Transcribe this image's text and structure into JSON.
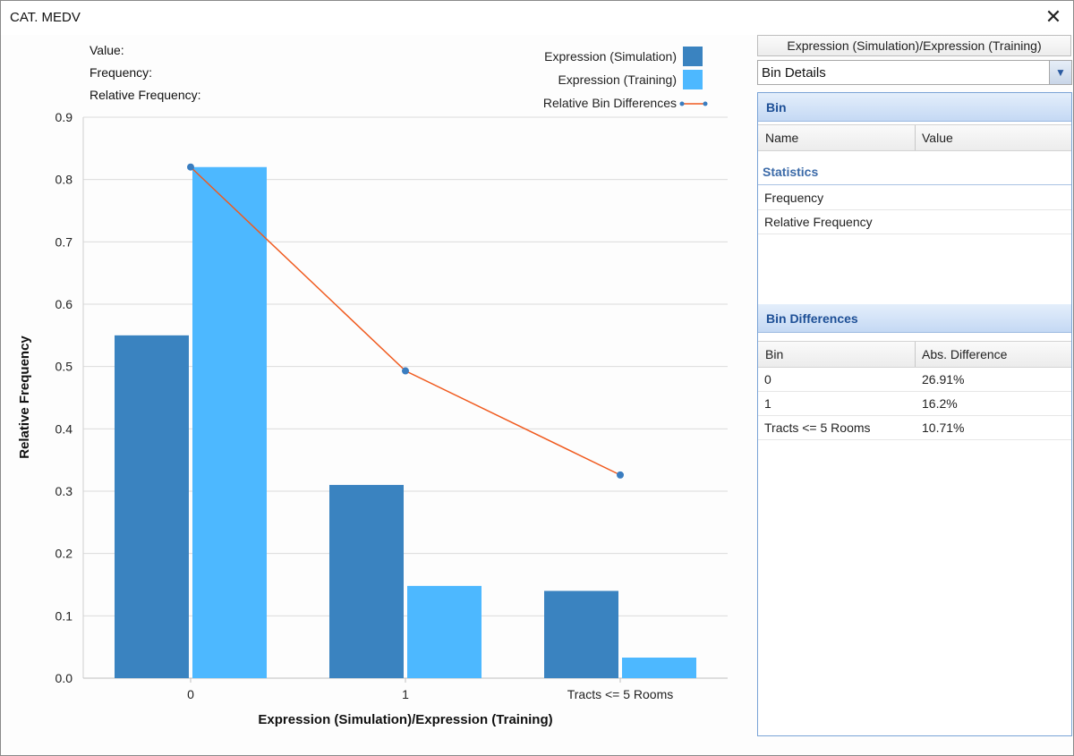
{
  "window": {
    "title": "CAT. MEDV",
    "close_glyph": "✕"
  },
  "info": {
    "value_label": "Value:",
    "frequency_label": "Frequency:",
    "relative_frequency_label": "Relative Frequency:"
  },
  "legend": {
    "simulation": "Expression (Simulation)",
    "training": "Expression (Training)",
    "differences": "Relative Bin Differences"
  },
  "colors": {
    "simulation": "#3a83c0",
    "training": "#4db8ff",
    "line": "#f05a1e",
    "point": "#3a7dc0"
  },
  "chart_data": {
    "type": "bar",
    "categories": [
      "0",
      "1",
      "Tracts <= 5 Rooms"
    ],
    "series": [
      {
        "name": "Expression (Simulation)",
        "values": [
          0.55,
          0.31,
          0.14
        ]
      },
      {
        "name": "Expression (Training)",
        "values": [
          0.82,
          0.148,
          0.033
        ]
      }
    ],
    "line_series": {
      "name": "Relative Bin Differences",
      "values": [
        0.82,
        0.493,
        0.326
      ]
    },
    "xlabel": "Expression (Simulation)/Expression (Training)",
    "ylabel": "Relative Frequency",
    "ylim": [
      0,
      0.9
    ],
    "yticks": [
      "0.0",
      "0.1",
      "0.2",
      "0.3",
      "0.4",
      "0.5",
      "0.6",
      "0.7",
      "0.8",
      "0.9"
    ],
    "grid": true,
    "legend_position": "top-right"
  },
  "panel": {
    "top_button": "Expression (Simulation)/Expression (Training)",
    "dropdown_value": "Bin Details",
    "bin_section": "Bin",
    "bin_columns": {
      "name": "Name",
      "value": "Value"
    },
    "statistics_title": "Statistics",
    "statistics_rows": [
      "Frequency",
      "Relative Frequency"
    ],
    "diff_section": "Bin Differences",
    "diff_columns": {
      "bin": "Bin",
      "abs": "Abs. Difference"
    },
    "diff_rows": [
      {
        "bin": "0",
        "abs": "26.91%"
      },
      {
        "bin": "1",
        "abs": "16.2%"
      },
      {
        "bin": "Tracts <= 5 Rooms",
        "abs": "10.71%"
      }
    ]
  }
}
